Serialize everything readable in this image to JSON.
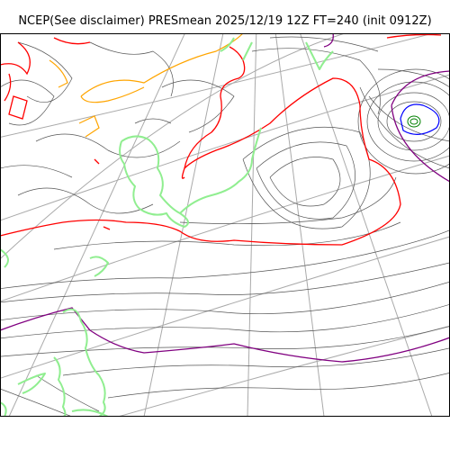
{
  "title": "NCEP(See disclaimer) PRESmean 2025/12/19 12Z FT=240 (init 0912Z)",
  "colors": {
    "isobar": "#555555",
    "coastline": "#90ee90",
    "graticule": "#aaaaaa",
    "contour_red": "#ff0000",
    "contour_orange": "#ffa500",
    "contour_purple": "#800080",
    "contour_blue": "#0000ff",
    "contour_green": "#008000"
  }
}
